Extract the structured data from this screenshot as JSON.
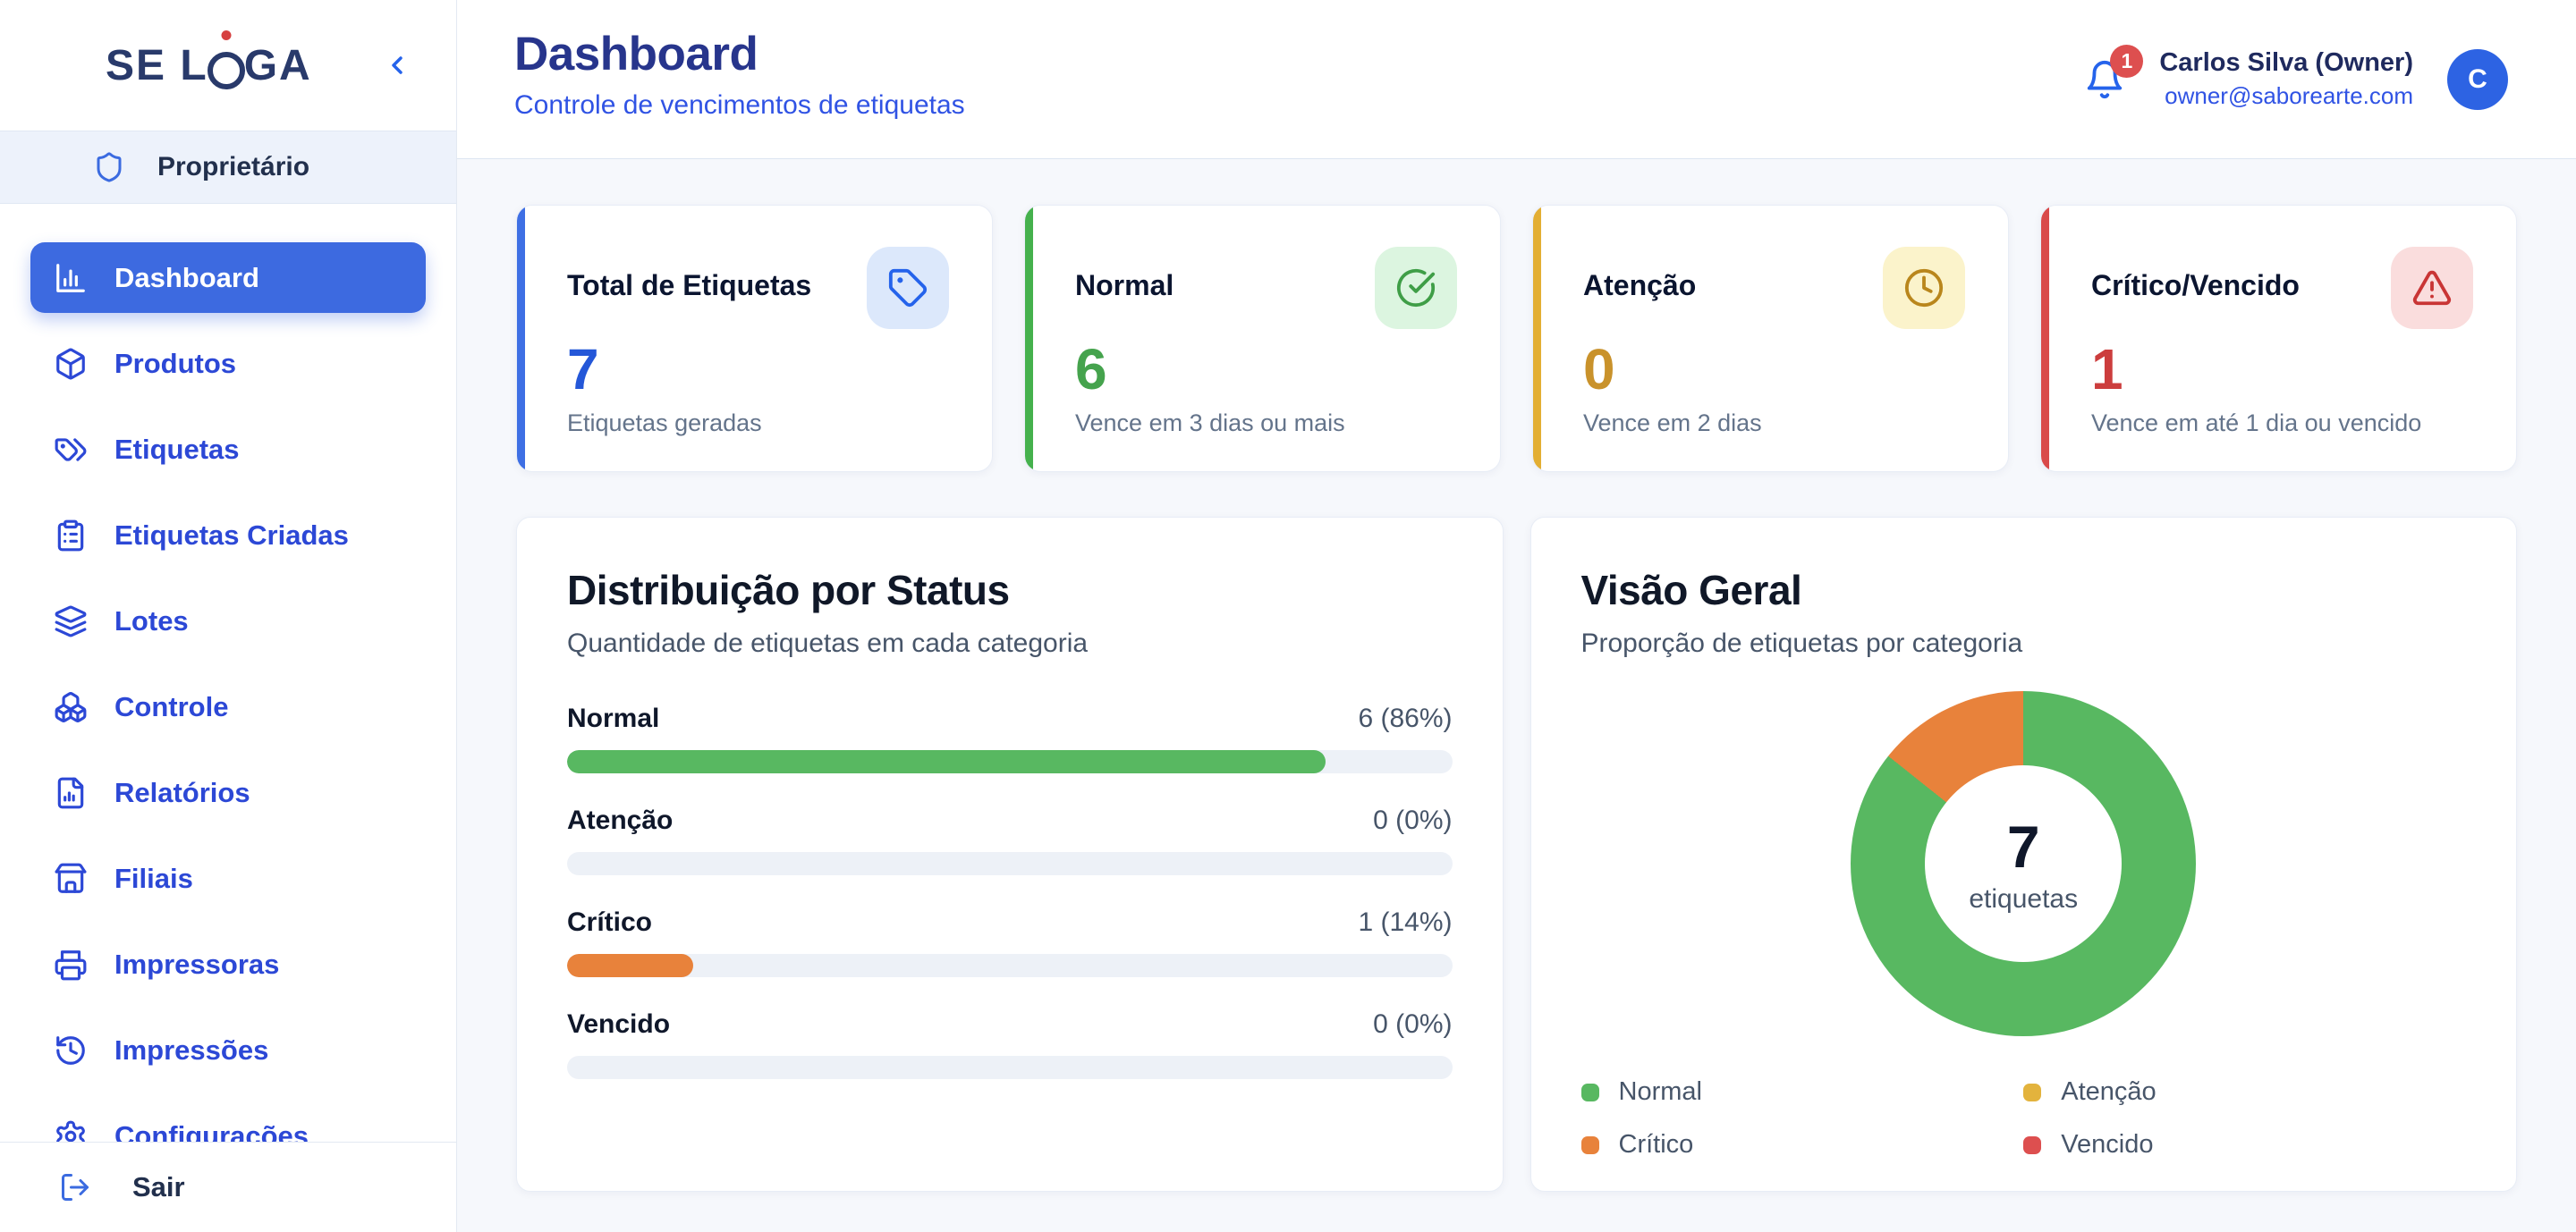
{
  "app": {
    "logo": {
      "text": "SE LIGA",
      "parts": [
        "SE L",
        "I",
        "GA"
      ]
    },
    "role_label": "Proprietário"
  },
  "sidebar": {
    "items": [
      {
        "label": "Dashboard",
        "icon": "bar-chart",
        "active": true
      },
      {
        "label": "Produtos",
        "icon": "package",
        "active": false
      },
      {
        "label": "Etiquetas",
        "icon": "tags",
        "active": false
      },
      {
        "label": "Etiquetas Criadas",
        "icon": "clipboard-list",
        "active": false
      },
      {
        "label": "Lotes",
        "icon": "layers",
        "active": false
      },
      {
        "label": "Controle",
        "icon": "boxes",
        "active": false
      },
      {
        "label": "Relatórios",
        "icon": "file-chart",
        "active": false
      },
      {
        "label": "Filiais",
        "icon": "store",
        "active": false
      },
      {
        "label": "Impressoras",
        "icon": "printer",
        "active": false
      },
      {
        "label": "Impressões",
        "icon": "history",
        "active": false
      },
      {
        "label": "Configurações",
        "icon": "settings",
        "active": false
      }
    ],
    "footer": {
      "label": "Sair",
      "icon": "log-out"
    }
  },
  "header": {
    "title": "Dashboard",
    "subtitle": "Controle de vencimentos de etiquetas",
    "notifications": {
      "count": "1"
    },
    "user": {
      "name": "Carlos Silva (Owner)",
      "email": "owner@saborearte.com",
      "avatar_initial": "C"
    }
  },
  "cards": [
    {
      "title": "Total de Etiquetas",
      "value": "7",
      "caption": "Etiquetas geradas",
      "icon": "tag",
      "accent": "#3e6fe4",
      "icon_bg": "#dce8fb",
      "icon_color": "#2563eb",
      "value_color": "#2457d8"
    },
    {
      "title": "Normal",
      "value": "6",
      "caption": "Vence em 3 dias ou mais",
      "icon": "check-circle",
      "accent": "#45b14d",
      "icon_bg": "#dcf5e0",
      "icon_color": "#3f9e47",
      "value_color": "#45a34d"
    },
    {
      "title": "Atenção",
      "value": "0",
      "caption": "Vence em 2 dias",
      "icon": "clock",
      "accent": "#e3ae33",
      "icon_bg": "#fbf3cb",
      "icon_color": "#b9861c",
      "value_color": "#c9922b"
    },
    {
      "title": "Crítico/Vencido",
      "value": "1",
      "caption": "Vence em até 1 dia ou vencido",
      "icon": "alert-triangle",
      "accent": "#d94a4a",
      "icon_bg": "#fadddd",
      "icon_color": "#c93535",
      "value_color": "#cc3d3d"
    }
  ],
  "chart_data": [
    {
      "type": "bar",
      "title": "Distribuição por Status",
      "subtitle": "Quantidade de etiquetas em cada categoria",
      "categories": [
        "Normal",
        "Atenção",
        "Crítico",
        "Vencido"
      ],
      "values": [
        6,
        0,
        1,
        0
      ],
      "total": 7,
      "percents": [
        86,
        0,
        14,
        0
      ],
      "value_labels": [
        "6 (86%)",
        "0 (0%)",
        "1 (14%)",
        "0 (0%)"
      ],
      "colors": [
        "#58b861",
        "#e3b33d",
        "#e8823b",
        "#dd4f4f"
      ],
      "track_color": "#edf1f7",
      "orientation": "horizontal"
    },
    {
      "type": "donut",
      "title": "Visão Geral",
      "subtitle": "Proporção de etiquetas por categoria",
      "labels": [
        "Normal",
        "Atenção",
        "Crítico",
        "Vencido"
      ],
      "values": [
        6,
        0,
        1,
        0
      ],
      "colors": [
        "#58b861",
        "#e3b33d",
        "#e8823b",
        "#dd4f4f"
      ],
      "center_value": "7",
      "center_label": "etiquetas",
      "legend_position": "bottom"
    }
  ]
}
